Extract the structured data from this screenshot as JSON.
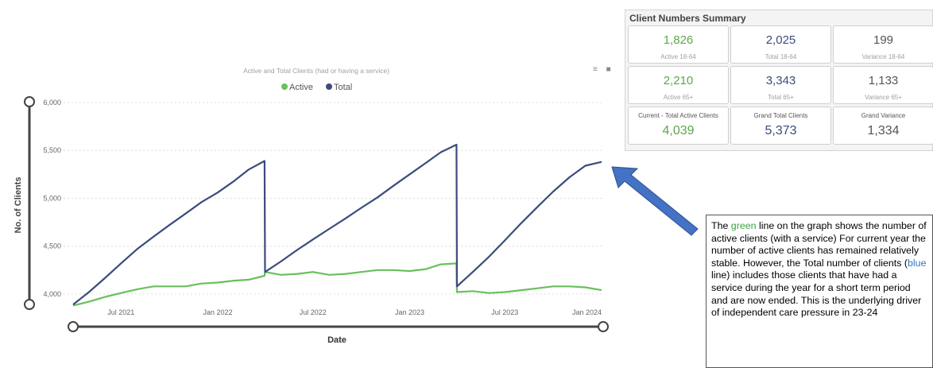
{
  "chart_data": {
    "type": "line",
    "title": "Active and Total Clients (had or having a service)",
    "xlabel": "Date",
    "ylabel": "No. of Clients",
    "ylim": [
      3850,
      6000
    ],
    "yticks": [
      4000,
      4500,
      5000,
      5500,
      6000
    ],
    "ytick_labels": [
      "4,000",
      "4,500",
      "5,000",
      "5,500",
      "6,000"
    ],
    "xticks": [
      {
        "date": "2021-07-01",
        "label": "Jul 2021"
      },
      {
        "date": "2022-01-01",
        "label": "Jan 2022"
      },
      {
        "date": "2022-07-01",
        "label": "Jul 2022"
      },
      {
        "date": "2023-01-01",
        "label": "Jan 2023"
      },
      {
        "date": "2023-07-01",
        "label": "Jul 2023"
      },
      {
        "date": "2024-01-01",
        "label": "Jan 2024"
      }
    ],
    "xrange": [
      "2021-04-01",
      "2024-01-01"
    ],
    "grid": true,
    "legend": "top",
    "series": [
      {
        "name": "Active",
        "color": "#6abf5e",
        "points": [
          [
            "2021-04-01",
            3880
          ],
          [
            "2021-05-01",
            3920
          ],
          [
            "2021-06-01",
            3970
          ],
          [
            "2021-07-01",
            4010
          ],
          [
            "2021-08-01",
            4050
          ],
          [
            "2021-09-01",
            4080
          ],
          [
            "2021-10-01",
            4080
          ],
          [
            "2021-11-01",
            4080
          ],
          [
            "2021-12-01",
            4110
          ],
          [
            "2022-01-01",
            4120
          ],
          [
            "2022-02-01",
            4140
          ],
          [
            "2022-03-01",
            4150
          ],
          [
            "2022-03-31",
            4190
          ],
          [
            "2022-04-01",
            4230
          ],
          [
            "2022-05-01",
            4200
          ],
          [
            "2022-06-01",
            4210
          ],
          [
            "2022-07-01",
            4230
          ],
          [
            "2022-08-01",
            4200
          ],
          [
            "2022-09-01",
            4210
          ],
          [
            "2022-10-01",
            4230
          ],
          [
            "2022-11-01",
            4250
          ],
          [
            "2022-12-01",
            4250
          ],
          [
            "2023-01-01",
            4240
          ],
          [
            "2023-02-01",
            4260
          ],
          [
            "2023-03-01",
            4310
          ],
          [
            "2023-03-31",
            4320
          ],
          [
            "2023-04-01",
            4020
          ],
          [
            "2023-05-01",
            4030
          ],
          [
            "2023-06-01",
            4010
          ],
          [
            "2023-07-01",
            4020
          ],
          [
            "2023-08-01",
            4040
          ],
          [
            "2023-09-01",
            4060
          ],
          [
            "2023-10-01",
            4080
          ],
          [
            "2023-11-01",
            4080
          ],
          [
            "2023-12-01",
            4070
          ],
          [
            "2024-01-01",
            4040
          ]
        ]
      },
      {
        "name": "Total",
        "color": "#3b4c7c",
        "points": [
          [
            "2021-04-01",
            3890
          ],
          [
            "2021-05-01",
            4020
          ],
          [
            "2021-06-01",
            4170
          ],
          [
            "2021-07-01",
            4320
          ],
          [
            "2021-08-01",
            4470
          ],
          [
            "2021-09-01",
            4600
          ],
          [
            "2021-10-01",
            4720
          ],
          [
            "2021-11-01",
            4840
          ],
          [
            "2021-12-01",
            4960
          ],
          [
            "2022-01-01",
            5060
          ],
          [
            "2022-02-01",
            5180
          ],
          [
            "2022-03-01",
            5300
          ],
          [
            "2022-03-31",
            5390
          ],
          [
            "2022-04-01",
            4230
          ],
          [
            "2022-05-01",
            4340
          ],
          [
            "2022-06-01",
            4460
          ],
          [
            "2022-07-01",
            4570
          ],
          [
            "2022-08-01",
            4680
          ],
          [
            "2022-09-01",
            4790
          ],
          [
            "2022-10-01",
            4900
          ],
          [
            "2022-11-01",
            5010
          ],
          [
            "2022-12-01",
            5130
          ],
          [
            "2023-01-01",
            5250
          ],
          [
            "2023-02-01",
            5370
          ],
          [
            "2023-03-01",
            5480
          ],
          [
            "2023-03-31",
            5560
          ],
          [
            "2023-04-01",
            4080
          ],
          [
            "2023-05-01",
            4230
          ],
          [
            "2023-06-01",
            4390
          ],
          [
            "2023-07-01",
            4560
          ],
          [
            "2023-08-01",
            4740
          ],
          [
            "2023-09-01",
            4910
          ],
          [
            "2023-10-01",
            5070
          ],
          [
            "2023-11-01",
            5220
          ],
          [
            "2023-12-01",
            5340
          ],
          [
            "2024-01-01",
            5380
          ]
        ]
      }
    ]
  },
  "summary": {
    "title": "Client Numbers Summary",
    "cards": [
      {
        "value": "1,826",
        "label": "Active 18-64",
        "color": "green"
      },
      {
        "value": "2,025",
        "label": "Total 18-64",
        "color": "navy"
      },
      {
        "value": "199",
        "label": "Variance 18-64",
        "color": "gray"
      },
      {
        "value": "2,210",
        "label": "Active 65+",
        "color": "green"
      },
      {
        "value": "3,343",
        "label": "Total 65+",
        "color": "navy"
      },
      {
        "value": "1,133",
        "label": "Variance 65+",
        "color": "gray"
      },
      {
        "value": "4,039",
        "label": "Current - Total Active Clients",
        "color": "green"
      },
      {
        "value": "5,373",
        "label": "Grand Total Clients",
        "color": "navy"
      },
      {
        "value": "1,334",
        "label": "Grand Variance",
        "color": "gray"
      }
    ]
  },
  "note": {
    "part1": "The ",
    "green_word": "green",
    "part2": " line on the graph shows the number of active clients (with a service) For current year the number of active clients has remained relatively stable. However, the Total number of clients (",
    "blue_word": "blue",
    "part3": " line) includes those clients that have had a service during the year for a short term period and are now ended. This is the underlying driver of independent care pressure in 23-24"
  },
  "toolbar": {
    "filter_icon": "filter-icon",
    "more_icon": "more-icon"
  },
  "arrow_color": "#4472c4"
}
